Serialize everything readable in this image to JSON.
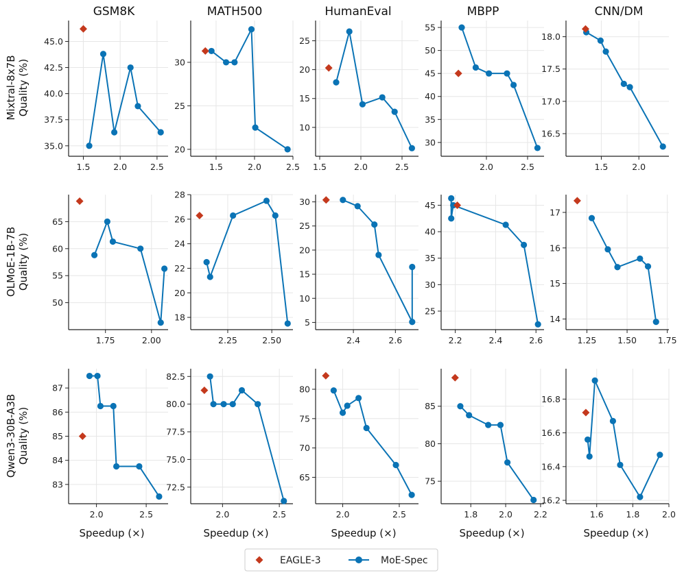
{
  "colors": {
    "eagle": "#c4391d",
    "moe": "#0a73b5",
    "grid": "#e6e6e6",
    "axis": "#222222"
  },
  "legend": {
    "eagle_label": "EAGLE-3",
    "moe_label": "MoE-Spec"
  },
  "columns": [
    "GSM8K",
    "MATH500",
    "HumanEval",
    "MBPP",
    "CNN/DM"
  ],
  "rows": [
    {
      "name": "Mixtral-8x7B",
      "ylabel": "Quality (%)"
    },
    {
      "name": "OLMoE-1B-7B",
      "ylabel": "Quality (%)"
    },
    {
      "name": "Qwen3-30B-A3B",
      "ylabel": "Quality (%)"
    }
  ],
  "xlabel": "Speedup (×)",
  "chart_data": [
    {
      "type": "line",
      "title": "GSM8K",
      "model": "Mixtral-8x7B",
      "xlabel": "",
      "ylabel": "Quality (%)",
      "xlim": [
        1.3,
        2.65
      ],
      "ylim": [
        34.0,
        47.0
      ],
      "xticks": [
        1.5,
        2.0,
        2.5
      ],
      "xtick_labels": [
        "1.5",
        "2.0",
        "2.5"
      ],
      "yticks": [
        35.0,
        37.5,
        40.0,
        42.5,
        45.0
      ],
      "ytick_labels": [
        "35.0",
        "37.5",
        "40.0",
        "42.5",
        "45.0"
      ],
      "eagle": [
        [
          1.5,
          46.2
        ]
      ],
      "series": [
        {
          "name": "MoE-Spec",
          "x": [
            1.58,
            1.77,
            1.92,
            2.14,
            2.24,
            2.55
          ],
          "y": [
            35.0,
            43.8,
            36.3,
            42.5,
            38.8,
            36.3
          ]
        }
      ]
    },
    {
      "type": "line",
      "title": "MATH500",
      "model": "Mixtral-8x7B",
      "xlabel": "",
      "ylabel": "",
      "xlim": [
        1.17,
        2.5
      ],
      "ylim": [
        19.2,
        34.8
      ],
      "xticks": [
        1.5,
        2.0,
        2.5
      ],
      "xtick_labels": [
        "1.5",
        "2.0",
        "2.5"
      ],
      "yticks": [
        20,
        25,
        30
      ],
      "ytick_labels": [
        "20",
        "25",
        "30"
      ],
      "eagle": [
        [
          1.36,
          31.3
        ]
      ],
      "series": [
        {
          "name": "MoE-Spec",
          "x": [
            1.44,
            1.63,
            1.74,
            1.96,
            2.01,
            2.43
          ],
          "y": [
            31.3,
            30.0,
            30.0,
            33.8,
            22.5,
            20.0
          ]
        }
      ]
    },
    {
      "type": "line",
      "title": "HumanEval",
      "model": "Mixtral-8x7B",
      "xlabel": "",
      "ylabel": "",
      "xlim": [
        1.45,
        2.7
      ],
      "ylim": [
        5.0,
        28.5
      ],
      "xticks": [
        1.5,
        2.0,
        2.5
      ],
      "xtick_labels": [
        "1.5",
        "2.0",
        "2.5"
      ],
      "yticks": [
        10,
        15,
        20,
        25
      ],
      "ytick_labels": [
        "10",
        "15",
        "20",
        "25"
      ],
      "eagle": [
        [
          1.61,
          20.3
        ]
      ],
      "series": [
        {
          "name": "MoE-Spec",
          "x": [
            1.7,
            1.86,
            2.02,
            2.26,
            2.41,
            2.62
          ],
          "y": [
            17.8,
            26.6,
            14.0,
            15.2,
            12.7,
            6.4
          ]
        }
      ]
    },
    {
      "type": "line",
      "title": "MBPP",
      "model": "Mixtral-8x7B",
      "xlabel": "",
      "ylabel": "",
      "xlim": [
        1.45,
        2.7
      ],
      "ylim": [
        27.0,
        56.5
      ],
      "xticks": [
        2.0,
        2.5
      ],
      "xtick_labels": [
        "2.0",
        "2.5"
      ],
      "yticks": [
        30,
        35,
        40,
        45,
        50,
        55
      ],
      "ytick_labels": [
        "30",
        "35",
        "40",
        "45",
        "50",
        "55"
      ],
      "eagle": [
        [
          1.66,
          45.0
        ]
      ],
      "series": [
        {
          "name": "MoE-Spec",
          "x": [
            1.7,
            1.87,
            2.03,
            2.25,
            2.33,
            2.62
          ],
          "y": [
            55.0,
            46.3,
            45.0,
            45.0,
            42.5,
            28.8
          ]
        }
      ]
    },
    {
      "type": "line",
      "title": "CNN/DM",
      "model": "Mixtral-8x7B",
      "xlabel": "",
      "ylabel": "",
      "xlim": [
        1.03,
        2.4
      ],
      "ylim": [
        16.15,
        18.25
      ],
      "xticks": [
        1.5,
        2.0
      ],
      "xtick_labels": [
        "1.5",
        "2.0"
      ],
      "yticks": [
        16.5,
        17.0,
        17.5,
        18.0
      ],
      "ytick_labels": [
        "16.5",
        "17.0",
        "17.5",
        "18.0"
      ],
      "eagle": [
        [
          1.29,
          18.12
        ]
      ],
      "series": [
        {
          "name": "MoE-Spec",
          "x": [
            1.3,
            1.49,
            1.56,
            1.8,
            1.88,
            2.32
          ],
          "y": [
            18.07,
            17.94,
            17.77,
            17.27,
            17.22,
            16.3
          ]
        }
      ]
    },
    {
      "type": "line",
      "title": "GSM8K",
      "model": "OLMoE-1B-7B",
      "xlabel": "",
      "ylabel": "Quality (%)",
      "xlim": [
        1.55,
        2.09
      ],
      "ylim": [
        45.0,
        70.0
      ],
      "xticks": [
        1.75,
        2.0
      ],
      "xtick_labels": [
        "1.75",
        "2.00"
      ],
      "yticks": [
        50,
        55,
        60,
        65
      ],
      "ytick_labels": [
        "50",
        "55",
        "60",
        "65"
      ],
      "eagle": [
        [
          1.61,
          68.8
        ]
      ],
      "series": [
        {
          "name": "MoE-Spec",
          "x": [
            1.69,
            1.76,
            1.79,
            1.94,
            2.05,
            2.07
          ],
          "y": [
            58.8,
            65.0,
            61.3,
            60.0,
            46.3,
            56.3
          ]
        }
      ]
    },
    {
      "type": "line",
      "title": "MATH500",
      "model": "OLMoE-1B-7B",
      "xlabel": "",
      "ylabel": "",
      "xlim": [
        2.04,
        2.62
      ],
      "ylim": [
        17.0,
        28.0
      ],
      "xticks": [
        2.25,
        2.5
      ],
      "xtick_labels": [
        "2.25",
        "2.50"
      ],
      "yticks": [
        18,
        20,
        22,
        24,
        26,
        28
      ],
      "ytick_labels": [
        "18",
        "20",
        "22",
        "24",
        "26",
        "28"
      ],
      "eagle": [
        [
          2.09,
          26.3
        ]
      ],
      "series": [
        {
          "name": "MoE-Spec",
          "x": [
            2.13,
            2.15,
            2.28,
            2.47,
            2.52,
            2.59
          ],
          "y": [
            22.5,
            21.3,
            26.3,
            27.5,
            26.3,
            17.5
          ]
        }
      ]
    },
    {
      "type": "line",
      "title": "HumanEval",
      "model": "OLMoE-1B-7B",
      "xlabel": "",
      "ylabel": "",
      "xlim": [
        2.22,
        2.71
      ],
      "ylim": [
        3.5,
        31.5
      ],
      "xticks": [
        2.4,
        2.6
      ],
      "xtick_labels": [
        "2.4",
        "2.6"
      ],
      "yticks": [
        5,
        10,
        15,
        20,
        25,
        30
      ],
      "ytick_labels": [
        "5",
        "10",
        "15",
        "20",
        "25",
        "30"
      ],
      "eagle": [
        [
          2.27,
          30.4
        ]
      ],
      "series": [
        {
          "name": "MoE-Spec",
          "x": [
            2.35,
            2.42,
            2.5,
            2.52,
            2.68,
            2.68
          ],
          "y": [
            30.4,
            29.1,
            25.3,
            19.0,
            5.1,
            16.5
          ]
        }
      ]
    },
    {
      "type": "line",
      "title": "MBPP",
      "model": "OLMoE-1B-7B",
      "xlabel": "",
      "ylabel": "",
      "xlim": [
        2.13,
        2.64
      ],
      "ylim": [
        21.5,
        47.0
      ],
      "xticks": [
        2.2,
        2.4,
        2.6
      ],
      "xtick_labels": [
        "2.2",
        "2.4",
        "2.6"
      ],
      "yticks": [
        25,
        30,
        35,
        40,
        45
      ],
      "ytick_labels": [
        "25",
        "30",
        "35",
        "40",
        "45"
      ],
      "eagle": [
        [
          2.21,
          45.0
        ]
      ],
      "series": [
        {
          "name": "MoE-Spec",
          "x": [
            2.18,
            2.18,
            2.19,
            2.45,
            2.54,
            2.61
          ],
          "y": [
            46.3,
            42.5,
            45.0,
            41.3,
            37.5,
            22.5
          ]
        }
      ]
    },
    {
      "type": "line",
      "title": "CNN/DM",
      "model": "OLMoE-1B-7B",
      "xlabel": "",
      "ylabel": "",
      "xlim": [
        1.12,
        1.76
      ],
      "ylim": [
        13.7,
        17.5
      ],
      "xticks": [
        1.25,
        1.5,
        1.75
      ],
      "xtick_labels": [
        "1.25",
        "1.50",
        "1.75"
      ],
      "yticks": [
        14,
        15,
        16,
        17
      ],
      "ytick_labels": [
        "14",
        "15",
        "16",
        "17"
      ],
      "eagle": [
        [
          1.19,
          17.33
        ]
      ],
      "series": [
        {
          "name": "MoE-Spec",
          "x": [
            1.28,
            1.38,
            1.44,
            1.58,
            1.63,
            1.68
          ],
          "y": [
            16.84,
            15.96,
            15.46,
            15.7,
            15.48,
            13.92
          ]
        }
      ]
    },
    {
      "type": "line",
      "title": "GSM8K",
      "model": "Qwen3-30B-A3B",
      "xlabel": "Speedup (×)",
      "ylabel": "Quality (%)",
      "xlim": [
        1.72,
        2.72
      ],
      "ylim": [
        82.2,
        87.8
      ],
      "xticks": [
        2.0,
        2.5
      ],
      "xtick_labels": [
        "2.0",
        "2.5"
      ],
      "yticks": [
        83,
        84,
        85,
        86,
        87
      ],
      "ytick_labels": [
        "83",
        "84",
        "85",
        "86",
        "87"
      ],
      "eagle": [
        [
          1.86,
          85.0
        ]
      ],
      "series": [
        {
          "name": "MoE-Spec",
          "x": [
            1.93,
            2.01,
            2.04,
            2.17,
            2.2,
            2.43,
            2.63
          ],
          "y": [
            87.5,
            87.5,
            86.25,
            86.25,
            83.75,
            83.75,
            82.5
          ]
        }
      ]
    },
    {
      "type": "line",
      "title": "MATH500",
      "model": "Qwen3-30B-A3B",
      "xlabel": "Speedup (×)",
      "ylabel": "",
      "xlim": [
        1.72,
        2.62
      ],
      "ylim": [
        71.0,
        83.2
      ],
      "xticks": [
        2.0,
        2.5
      ],
      "xtick_labels": [
        "2.0",
        "2.5"
      ],
      "yticks": [
        72.5,
        75.0,
        77.5,
        80.0,
        82.5
      ],
      "ytick_labels": [
        "72.5",
        "75.0",
        "77.5",
        "80.0",
        "82.5"
      ],
      "eagle": [
        [
          1.84,
          81.25
        ]
      ],
      "series": [
        {
          "name": "MoE-Spec",
          "x": [
            1.89,
            1.92,
            2.01,
            2.09,
            2.17,
            2.31,
            2.54
          ],
          "y": [
            82.5,
            80.0,
            80.0,
            80.0,
            81.25,
            80.0,
            71.25
          ]
        }
      ]
    },
    {
      "type": "line",
      "title": "HumanEval",
      "model": "Qwen3-30B-A3B",
      "xlabel": "Speedup (×)",
      "ylabel": "",
      "xlim": [
        1.76,
        2.67
      ],
      "ylim": [
        60.5,
        83.5
      ],
      "xticks": [
        2.0,
        2.5
      ],
      "xtick_labels": [
        "2.0",
        "2.5"
      ],
      "yticks": [
        65,
        70,
        75,
        80
      ],
      "ytick_labels": [
        "65",
        "70",
        "75",
        "80"
      ],
      "eagle": [
        [
          1.85,
          82.3
        ]
      ],
      "series": [
        {
          "name": "MoE-Spec",
          "x": [
            1.92,
            2.0,
            2.04,
            2.14,
            2.21,
            2.47,
            2.61
          ],
          "y": [
            79.8,
            76.0,
            77.2,
            78.5,
            73.4,
            67.1,
            62.0
          ]
        }
      ]
    },
    {
      "type": "line",
      "title": "MBPP",
      "model": "Qwen3-30B-A3B",
      "xlabel": "Speedup (×)",
      "ylabel": "",
      "xlim": [
        1.63,
        2.22
      ],
      "ylim": [
        72.0,
        90.0
      ],
      "xticks": [
        1.8,
        2.0,
        2.2
      ],
      "xtick_labels": [
        "1.8",
        "2.0",
        "2.2"
      ],
      "yticks": [
        75,
        80,
        85
      ],
      "ytick_labels": [
        "75",
        "80",
        "85"
      ],
      "eagle": [
        [
          1.71,
          88.8
        ]
      ],
      "series": [
        {
          "name": "MoE-Spec",
          "x": [
            1.74,
            1.79,
            1.9,
            1.97,
            2.01,
            2.16
          ],
          "y": [
            85.0,
            83.8,
            82.5,
            82.5,
            77.5,
            72.5
          ]
        }
      ]
    },
    {
      "type": "line",
      "title": "CNN/DM",
      "model": "Qwen3-30B-A3B",
      "xlabel": "Speedup (×)",
      "ylabel": "",
      "xlim": [
        1.43,
        2.0
      ],
      "ylim": [
        16.18,
        16.98
      ],
      "xticks": [
        1.6,
        1.8,
        2.0
      ],
      "xtick_labels": [
        "1.6",
        "1.8",
        "2.0"
      ],
      "yticks": [
        16.2,
        16.4,
        16.6,
        16.8
      ],
      "ytick_labels": [
        "16.2",
        "16.4",
        "16.6",
        "16.8"
      ],
      "eagle": [
        [
          1.54,
          16.72
        ]
      ],
      "series": [
        {
          "name": "MoE-Spec",
          "x": [
            1.55,
            1.56,
            1.59,
            1.69,
            1.73,
            1.84,
            1.95
          ],
          "y": [
            16.56,
            16.46,
            16.91,
            16.67,
            16.41,
            16.22,
            16.47
          ]
        }
      ]
    }
  ]
}
